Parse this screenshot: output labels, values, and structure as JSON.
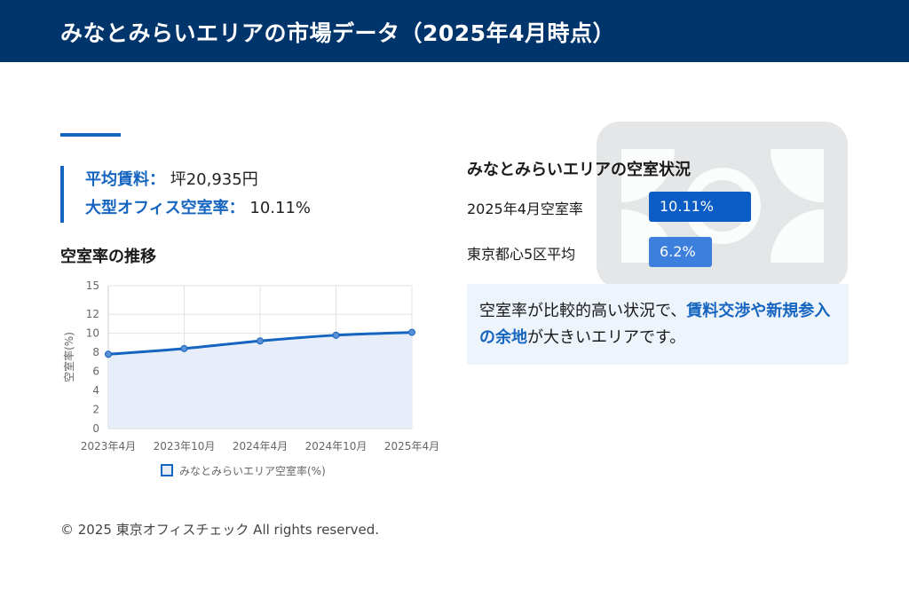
{
  "header": {
    "title": "みなとみらいエリアの市場データ（2025年4月時点）"
  },
  "summary": {
    "rent_label": "平均賃料：",
    "rent_value": "坪20,935円",
    "vacancy_label": "大型オフィス空室率：",
    "vacancy_value": "10.11%"
  },
  "trend_title": "空室率の推移",
  "chart_data": {
    "type": "line",
    "x": [
      "2023年4月",
      "2023年10月",
      "2024年4月",
      "2024年10月",
      "2025年4月"
    ],
    "series": [
      {
        "name": "みなとみらいエリア空室率(%)",
        "values": [
          7.8,
          8.4,
          9.2,
          9.8,
          10.1
        ]
      }
    ],
    "y_ticks": [
      0,
      2,
      4,
      6,
      8,
      10,
      12,
      15
    ],
    "ylim": [
      0,
      15
    ],
    "ylabel": "空室率(%)",
    "xlabel": "",
    "grid": true,
    "legend": "bottom",
    "colors": {
      "line": "#1565c0",
      "fill": "#e4ecf8"
    }
  },
  "status": {
    "title": "みなとみらいエリアの空室状況",
    "bars": [
      {
        "label": "2025年4月空室率",
        "value": 10.11,
        "display": "10.11%",
        "color": "#0b5cc4"
      },
      {
        "label": "東京都心5区平均",
        "value": 6.2,
        "display": "6.2%",
        "color": "#3d7fdd"
      }
    ]
  },
  "note": {
    "pre": "空室率が比較的高い状況で、",
    "highlight1": "賃料交渉や新規参入の余地",
    "post": "が大きいエリアです。"
  },
  "footer": "© 2025 東京オフィスチェック All rights reserved."
}
